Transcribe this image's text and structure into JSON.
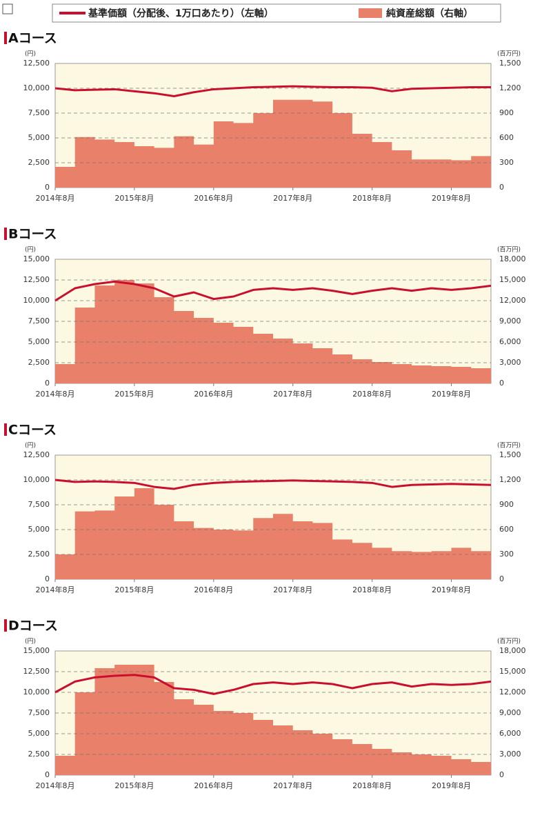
{
  "chart_data": [
    {
      "type": "combo",
      "title": "Aコース",
      "y_unit": "(円)",
      "y2_unit": "(百万円)",
      "legend": "top",
      "grid": true,
      "x": [
        "2014-08",
        "2014-11",
        "2015-02",
        "2015-05",
        "2015-08",
        "2015-11",
        "2016-02",
        "2016-05",
        "2016-08",
        "2016-11",
        "2017-02",
        "2017-05",
        "2017-08",
        "2017-11",
        "2018-02",
        "2018-05",
        "2018-08",
        "2018-11",
        "2019-02",
        "2019-05",
        "2019-08",
        "2019-11",
        "2020-02"
      ],
      "xlim": [
        "2014-08",
        "2020-02"
      ],
      "xticks": [
        {
          "value": "2014-08",
          "label": "2014年8月"
        },
        {
          "value": "2015-08",
          "label": "2015年8月"
        },
        {
          "value": "2016-08",
          "label": "2016年8月"
        },
        {
          "value": "2017-08",
          "label": "2017年8月"
        },
        {
          "value": "2018-08",
          "label": "2018年8月"
        },
        {
          "value": "2019-08",
          "label": "2019年8月"
        }
      ],
      "ylim": [
        0,
        12500
      ],
      "yticks": [
        0,
        {
          "value": 2500,
          "label": "2,500"
        },
        {
          "value": 5000,
          "label": "5,000"
        },
        {
          "value": 7500,
          "label": "7,500"
        },
        {
          "value": 10000,
          "label": "10,000"
        },
        {
          "value": 12500,
          "label": "12,500"
        }
      ],
      "y2lim": [
        0,
        1500
      ],
      "y2ticks": [
        0,
        300,
        600,
        900,
        {
          "value": 1200,
          "label": "1,200"
        },
        {
          "value": 1500,
          "label": "1,500"
        }
      ],
      "series": [
        {
          "name": "基準価額（分配後、1万口あたり）（左軸）",
          "color": "#c8102e",
          "values": [
            10000,
            9800,
            9850,
            9900,
            9700,
            9500,
            9200,
            9600,
            9900,
            10000,
            10100,
            10150,
            10200,
            10150,
            10100,
            10100,
            10050,
            9700,
            9950,
            10000,
            10050,
            10100,
            10100
          ]
        },
        {
          "name": "純資産総額（右軸）",
          "color": "#e8806a",
          "axis": "y2",
          "values": [
            250,
            610,
            580,
            550,
            500,
            480,
            620,
            520,
            800,
            780,
            900,
            1060,
            1060,
            1040,
            900,
            650,
            550,
            450,
            340,
            340,
            330,
            380,
            350
          ]
        }
      ]
    },
    {
      "type": "combo",
      "title": "Bコース",
      "y_unit": "(円)",
      "y2_unit": "(百万円)",
      "grid": true,
      "x": [
        "2014-08",
        "2014-11",
        "2015-02",
        "2015-05",
        "2015-08",
        "2015-11",
        "2016-02",
        "2016-05",
        "2016-08",
        "2016-11",
        "2017-02",
        "2017-05",
        "2017-08",
        "2017-11",
        "2018-02",
        "2018-05",
        "2018-08",
        "2018-11",
        "2019-02",
        "2019-05",
        "2019-08",
        "2019-11",
        "2020-02"
      ],
      "xlim": [
        "2014-08",
        "2020-02"
      ],
      "xticks": [
        {
          "value": "2014-08",
          "label": "2014年8月"
        },
        {
          "value": "2015-08",
          "label": "2015年8月"
        },
        {
          "value": "2016-08",
          "label": "2016年8月"
        },
        {
          "value": "2017-08",
          "label": "2017年8月"
        },
        {
          "value": "2018-08",
          "label": "2018年8月"
        },
        {
          "value": "2019-08",
          "label": "2019年8月"
        }
      ],
      "ylim": [
        0,
        15000
      ],
      "yticks": [
        0,
        {
          "value": 2500,
          "label": "2,500"
        },
        {
          "value": 5000,
          "label": "5,000"
        },
        {
          "value": 7500,
          "label": "7,500"
        },
        {
          "value": 10000,
          "label": "10,000"
        },
        {
          "value": 12500,
          "label": "12,500"
        },
        {
          "value": 15000,
          "label": "15,000"
        }
      ],
      "y2lim": [
        0,
        18000
      ],
      "y2ticks": [
        0,
        {
          "value": 3000,
          "label": "3,000"
        },
        {
          "value": 6000,
          "label": "6,000"
        },
        {
          "value": 9000,
          "label": "9,000"
        },
        {
          "value": 12000,
          "label": "12,000"
        },
        {
          "value": 15000,
          "label": "15,000"
        },
        {
          "value": 18000,
          "label": "18,000"
        }
      ],
      "series": [
        {
          "name": "基準価額（分配後、1万口あたり）（左軸）",
          "color": "#c8102e",
          "values": [
            10000,
            11500,
            12000,
            12300,
            12000,
            11500,
            10500,
            11000,
            10200,
            10500,
            11300,
            11500,
            11300,
            11500,
            11200,
            10800,
            11200,
            11500,
            11200,
            11500,
            11300,
            11500,
            11800
          ]
        },
        {
          "name": "純資産総額（右軸）",
          "color": "#e8806a",
          "axis": "y2",
          "values": [
            2800,
            11000,
            14200,
            15000,
            14500,
            12500,
            10500,
            9500,
            8800,
            8200,
            7200,
            6500,
            5800,
            5100,
            4200,
            3500,
            3100,
            2800,
            2600,
            2500,
            2400,
            2200,
            2100
          ]
        }
      ]
    },
    {
      "type": "combo",
      "title": "Cコース",
      "y_unit": "(円)",
      "y2_unit": "(百万円)",
      "grid": true,
      "x": [
        "2014-08",
        "2014-11",
        "2015-02",
        "2015-05",
        "2015-08",
        "2015-11",
        "2016-02",
        "2016-05",
        "2016-08",
        "2016-11",
        "2017-02",
        "2017-05",
        "2017-08",
        "2017-11",
        "2018-02",
        "2018-05",
        "2018-08",
        "2018-11",
        "2019-02",
        "2019-05",
        "2019-08",
        "2019-11",
        "2020-02"
      ],
      "xlim": [
        "2014-08",
        "2020-02"
      ],
      "xticks": [
        {
          "value": "2014-08",
          "label": "2014年8月"
        },
        {
          "value": "2015-08",
          "label": "2015年8月"
        },
        {
          "value": "2016-08",
          "label": "2016年8月"
        },
        {
          "value": "2017-08",
          "label": "2017年8月"
        },
        {
          "value": "2018-08",
          "label": "2018年8月"
        },
        {
          "value": "2019-08",
          "label": "2019年8月"
        }
      ],
      "ylim": [
        0,
        12500
      ],
      "yticks": [
        0,
        {
          "value": 2500,
          "label": "2,500"
        },
        {
          "value": 5000,
          "label": "5,000"
        },
        {
          "value": 7500,
          "label": "7,500"
        },
        {
          "value": 10000,
          "label": "10,000"
        },
        {
          "value": 12500,
          "label": "12,500"
        }
      ],
      "y2lim": [
        0,
        1500
      ],
      "y2ticks": [
        0,
        300,
        600,
        900,
        {
          "value": 1200,
          "label": "1,200"
        },
        {
          "value": 1500,
          "label": "1,500"
        }
      ],
      "series": [
        {
          "name": "基準価額（分配後、1万口あたり）（左軸）",
          "color": "#c8102e",
          "values": [
            10000,
            9800,
            9850,
            9800,
            9700,
            9300,
            9100,
            9500,
            9700,
            9800,
            9850,
            9900,
            9950,
            9900,
            9850,
            9800,
            9700,
            9300,
            9500,
            9550,
            9600,
            9550,
            9500
          ]
        },
        {
          "name": "純資産総額（右軸）",
          "color": "#e8806a",
          "axis": "y2",
          "values": [
            300,
            820,
            830,
            1000,
            1100,
            900,
            700,
            620,
            600,
            590,
            740,
            790,
            700,
            680,
            480,
            440,
            380,
            340,
            330,
            340,
            380,
            340,
            310
          ]
        }
      ]
    },
    {
      "type": "combo",
      "title": "Dコース",
      "y_unit": "(円)",
      "y2_unit": "(百万円)",
      "grid": true,
      "x": [
        "2014-08",
        "2014-11",
        "2015-02",
        "2015-05",
        "2015-08",
        "2015-11",
        "2016-02",
        "2016-05",
        "2016-08",
        "2016-11",
        "2017-02",
        "2017-05",
        "2017-08",
        "2017-11",
        "2018-02",
        "2018-05",
        "2018-08",
        "2018-11",
        "2019-02",
        "2019-05",
        "2019-08",
        "2019-11",
        "2020-02"
      ],
      "xlim": [
        "2014-08",
        "2020-02"
      ],
      "xticks": [
        {
          "value": "2014-08",
          "label": "2014年8月"
        },
        {
          "value": "2015-08",
          "label": "2015年8月"
        },
        {
          "value": "2016-08",
          "label": "2016年8月"
        },
        {
          "value": "2017-08",
          "label": "2017年8月"
        },
        {
          "value": "2018-08",
          "label": "2018年8月"
        },
        {
          "value": "2019-08",
          "label": "2019年8月"
        }
      ],
      "ylim": [
        0,
        15000
      ],
      "yticks": [
        0,
        {
          "value": 2500,
          "label": "2,500"
        },
        {
          "value": 5000,
          "label": "5,000"
        },
        {
          "value": 7500,
          "label": "7,500"
        },
        {
          "value": 10000,
          "label": "10,000"
        },
        {
          "value": 12500,
          "label": "12,500"
        },
        {
          "value": 15000,
          "label": "15,000"
        }
      ],
      "y2lim": [
        0,
        18000
      ],
      "y2ticks": [
        0,
        {
          "value": 3000,
          "label": "3,000"
        },
        {
          "value": 6000,
          "label": "6,000"
        },
        {
          "value": 9000,
          "label": "9,000"
        },
        {
          "value": 12000,
          "label": "12,000"
        },
        {
          "value": 15000,
          "label": "15,000"
        },
        {
          "value": 18000,
          "label": "18,000"
        }
      ],
      "series": [
        {
          "name": "基準価額（分配後、1万口あたり）（左軸）",
          "color": "#c8102e",
          "values": [
            10000,
            11300,
            11800,
            12000,
            12100,
            11800,
            10500,
            10300,
            9800,
            10300,
            11000,
            11200,
            11000,
            11200,
            11000,
            10500,
            11000,
            11200,
            10700,
            11000,
            10900,
            11000,
            11300
          ]
        },
        {
          "name": "純資産総額（右軸）",
          "color": "#e8806a",
          "axis": "y2",
          "values": [
            2800,
            12000,
            15500,
            16000,
            16000,
            13500,
            11000,
            10200,
            9300,
            9000,
            8000,
            7200,
            6500,
            6000,
            5200,
            4500,
            3800,
            3300,
            3000,
            2800,
            2300,
            1900,
            1700
          ]
        }
      ]
    }
  ]
}
